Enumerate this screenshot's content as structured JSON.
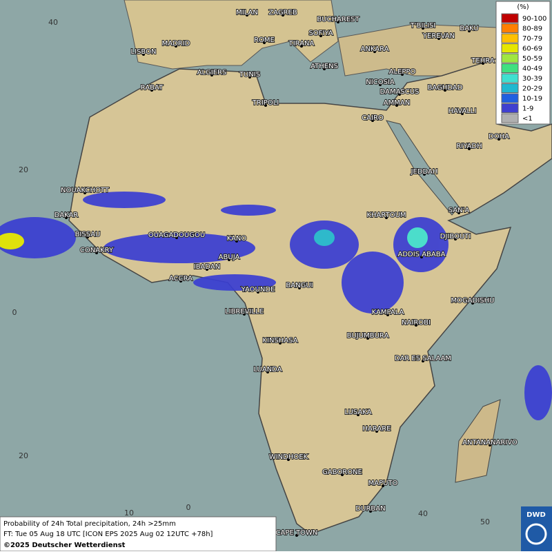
{
  "map": {
    "cities": [
      "MILAN",
      "ZAGREB",
      "BUCHAREST",
      "T'BILISI",
      "BAKU",
      "SOFIYA",
      "YEREVAN",
      "ROME",
      "TIRANA",
      "MADRID",
      "LISBON",
      "ANKARA",
      "TEHRA",
      "ATHENS",
      "ALGIERS",
      "TUNIS",
      "ALEPPO",
      "RABAT",
      "NICOSIA",
      "BAGHDAD",
      "DAMASCUS",
      "TRIPOLI",
      "AMMAN",
      "HAVALLI",
      "CAIRO",
      "DOHA",
      "RIYADH",
      "JEDDAH",
      "NOUAKCHOTT",
      "SAN'A",
      "DAKAR",
      "KHARTOUM",
      "BISSAU",
      "DJIBOUTI",
      "OUAGADOUGOU",
      "KANO",
      "CONAKRY",
      "ADDIS ABABA",
      "ABUJA",
      "IBADAN",
      "ACCRA",
      "BANGUI",
      "YAOUNDE",
      "MOGADISHU",
      "LIBREVILLE",
      "KAMPALA",
      "NAIROBI",
      "BUJUMBURA",
      "KINSHASA",
      "DAR ES SALAAM",
      "LUANDA",
      "LUSAKA",
      "HARARE",
      "ANTANANARIVO",
      "WINDHOEK",
      "GABORONE",
      "MAPUTO",
      "DURBAN",
      "CAPE TOWN"
    ],
    "lat_labels": [
      "40",
      "20",
      "0",
      "20"
    ],
    "lon_labels": [
      "10",
      "0",
      "40",
      "50"
    ]
  },
  "legend": {
    "unit": "(%)",
    "items": [
      {
        "label": "90-100",
        "color": "#c00000"
      },
      {
        "label": "80-89",
        "color": "#ff7f00"
      },
      {
        "label": "70-79",
        "color": "#ffc000"
      },
      {
        "label": "60-69",
        "color": "#e6e600"
      },
      {
        "label": "50-59",
        "color": "#a0e640"
      },
      {
        "label": "40-49",
        "color": "#40e080"
      },
      {
        "label": "30-39",
        "color": "#40e0d0"
      },
      {
        "label": "20-29",
        "color": "#20b8d0"
      },
      {
        "label": "10-19",
        "color": "#2060e0"
      },
      {
        "label": "1-9",
        "color": "#4040d0"
      },
      {
        "label": "<1",
        "color": "#b0b0b0"
      }
    ]
  },
  "footer": {
    "line1": "Probability of 24h Total precipitation, 24h >25mm",
    "line2": "FT: Tue 05 Aug 18 UTC [ICON EPS 2025 Aug 02 12UTC +78h]",
    "line3": "©2025 Deutscher Wetterdienst",
    "logo": "DWD"
  }
}
